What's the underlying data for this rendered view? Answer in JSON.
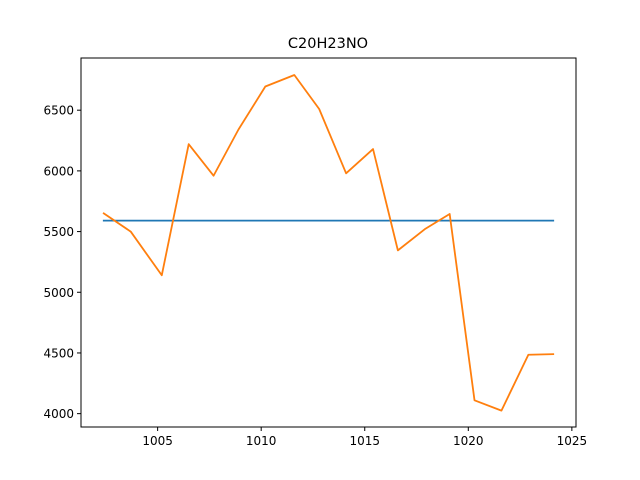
{
  "chart_data": {
    "type": "line",
    "title": "C20H23NO",
    "xlabel": "",
    "ylabel": "",
    "xlim": [
      1001.3,
      1025.2
    ],
    "ylim": [
      3890,
      6930
    ],
    "xticks": [
      1005,
      1010,
      1015,
      1020,
      1025
    ],
    "yticks": [
      4000,
      4500,
      5000,
      5500,
      6000,
      6500
    ],
    "grid": false,
    "legend": "none",
    "series": [
      {
        "color": "#1f77b4",
        "x": [
          1002.4,
          1024.1
        ],
        "y": [
          5590,
          5590
        ]
      },
      {
        "color": "#ff7f0e",
        "x": [
          1002.4,
          1003.7,
          1005.2,
          1006.5,
          1007.7,
          1008.9,
          1010.2,
          1011.6,
          1012.8,
          1014.1,
          1015.4,
          1016.6,
          1017.9,
          1019.1,
          1020.3,
          1021.6,
          1022.9,
          1024.1
        ],
        "y": [
          5650,
          5500,
          5140,
          6220,
          5960,
          6340,
          6695,
          6790,
          6510,
          5980,
          6180,
          5345,
          5520,
          5645,
          4110,
          4025,
          4485,
          4490
        ]
      }
    ]
  }
}
